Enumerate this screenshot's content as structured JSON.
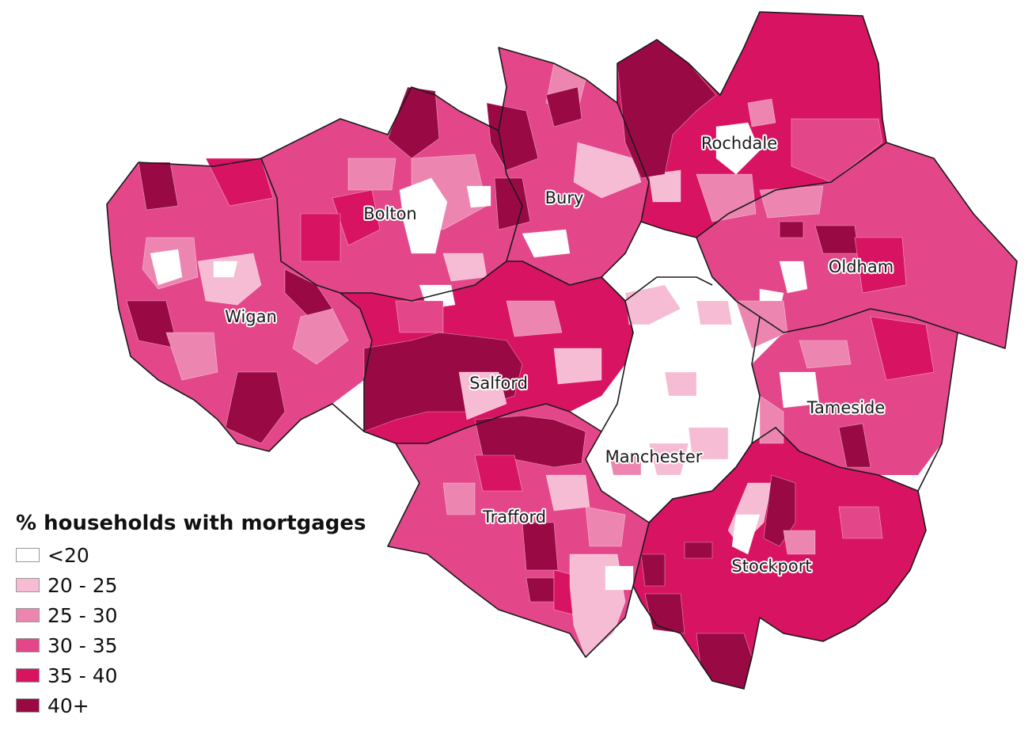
{
  "legend": {
    "title": "% households with mortgages",
    "classes": [
      {
        "label": "<20",
        "color": "#ffffff"
      },
      {
        "label": "20 - 25",
        "color": "#f6bcd3"
      },
      {
        "label": "25 - 30",
        "color": "#ec86b0"
      },
      {
        "label": "30 - 35",
        "color": "#e3478a"
      },
      {
        "label": "35 - 40",
        "color": "#d81462"
      },
      {
        "label": "40+",
        "color": "#990a44"
      }
    ]
  },
  "towns": [
    {
      "name": "Bolton"
    },
    {
      "name": "Bury"
    },
    {
      "name": "Rochdale"
    },
    {
      "name": "Oldham"
    },
    {
      "name": "Wigan"
    },
    {
      "name": "Salford"
    },
    {
      "name": "Tameside"
    },
    {
      "name": "Manchester"
    },
    {
      "name": "Trafford"
    },
    {
      "name": "Stockport"
    }
  ]
}
